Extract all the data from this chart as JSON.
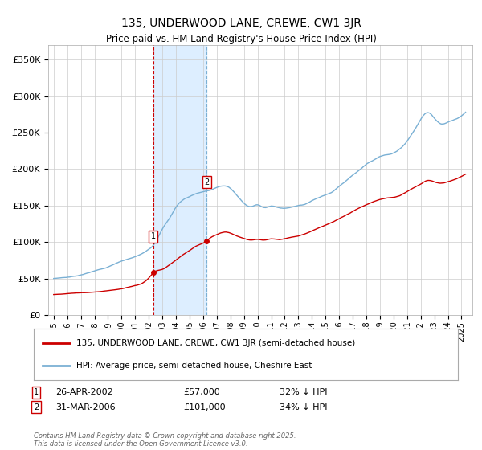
{
  "title": "135, UNDERWOOD LANE, CREWE, CW1 3JR",
  "subtitle": "Price paid vs. HM Land Registry's House Price Index (HPI)",
  "ylim": [
    0,
    370000
  ],
  "yticks": [
    0,
    50000,
    100000,
    150000,
    200000,
    250000,
    300000,
    350000
  ],
  "ytick_labels": [
    "£0",
    "£50K",
    "£100K",
    "£150K",
    "£200K",
    "£250K",
    "£300K",
    "£350K"
  ],
  "xlim_start": 1994.6,
  "xlim_end": 2025.8,
  "sale1_x": 2002.32,
  "sale1_y": 57000,
  "sale1_date": "26-APR-2002",
  "sale1_pct": "32% ↓ HPI",
  "sale2_x": 2006.25,
  "sale2_y": 101000,
  "sale2_date": "31-MAR-2006",
  "sale2_pct": "34% ↓ HPI",
  "legend_red": "135, UNDERWOOD LANE, CREWE, CW1 3JR (semi-detached house)",
  "legend_blue": "HPI: Average price, semi-detached house, Cheshire East",
  "footer": "Contains HM Land Registry data © Crown copyright and database right 2025.\nThis data is licensed under the Open Government Licence v3.0.",
  "red_color": "#cc0000",
  "blue_color": "#7ab0d4",
  "shade_color": "#ddeeff",
  "background_color": "#ffffff",
  "grid_color": "#cccccc"
}
